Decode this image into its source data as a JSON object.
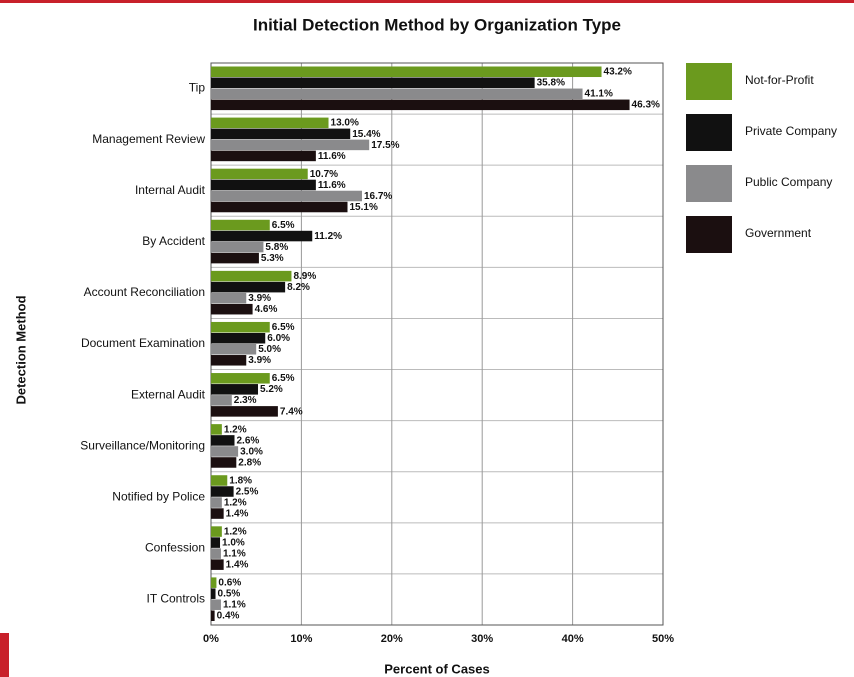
{
  "chart_data": {
    "type": "bar",
    "orientation": "horizontal",
    "title": "Initial Detection Method by Organization Type",
    "xlabel": "Percent of Cases",
    "ylabel": "Detection Method",
    "categories": [
      "Tip",
      "Management Review",
      "Internal Audit",
      "By Accident",
      "Account Reconciliation",
      "Document Examination",
      "External Audit",
      "Surveillance/Monitoring",
      "Notified by Police",
      "Confession",
      "IT Controls"
    ],
    "series": [
      {
        "name": "Not-for-Profit",
        "color": "#6b9a1e",
        "label_color": "#6b9a1e",
        "values": [
          43.2,
          13.0,
          10.7,
          6.5,
          8.9,
          6.5,
          6.5,
          1.2,
          1.8,
          1.2,
          0.6
        ],
        "value_labels": [
          "43.2%",
          "13.0%",
          "10.7%",
          "6.5%",
          "8.9%",
          "6.5%",
          "6.5%",
          "1.2%",
          "1.8%",
          "1.2%",
          "0.6%"
        ]
      },
      {
        "name": "Private Company",
        "color": "#111111",
        "label_color": "#0d0d1a",
        "values": [
          35.8,
          15.4,
          11.6,
          11.2,
          8.2,
          6.0,
          5.2,
          2.6,
          2.5,
          1.0,
          0.5
        ],
        "value_labels": [
          "35.8%",
          "15.4%",
          "11.6%",
          "11.2%",
          "8.2%",
          "6.0%",
          "5.2%",
          "2.6%",
          "2.5%",
          "1.0%",
          "0.5%"
        ]
      },
      {
        "name": "Public Company",
        "color": "#8a8a8c",
        "label_color": "#9a9a9c",
        "values": [
          41.1,
          17.5,
          16.7,
          5.8,
          3.9,
          5.0,
          2.3,
          3.0,
          1.2,
          1.1,
          1.1
        ],
        "value_labels": [
          "41.1%",
          "17.5%",
          "16.7%",
          "5.8%",
          "3.9%",
          "5.0%",
          "2.3%",
          "3.0%",
          "1.2%",
          "1.1%",
          "1.1%"
        ]
      },
      {
        "name": "Government",
        "color": "#1b0f10",
        "label_color": "#4a0f1a",
        "values": [
          46.3,
          11.6,
          15.1,
          5.3,
          4.6,
          3.9,
          7.4,
          2.8,
          1.4,
          1.4,
          0.4
        ],
        "value_labels": [
          "46.3%",
          "11.6%",
          "15.1%",
          "5.3%",
          "4.6%",
          "3.9%",
          "7.4%",
          "2.8%",
          "1.4%",
          "1.4%",
          "0.4%"
        ]
      }
    ],
    "xlim": [
      0,
      50
    ],
    "xticks": [
      {
        "value": 0,
        "label": "0%"
      },
      {
        "value": 10,
        "label": "10%"
      },
      {
        "value": 20,
        "label": "20%"
      },
      {
        "value": 30,
        "label": "30%"
      },
      {
        "value": 40,
        "label": "40%"
      },
      {
        "value": 50,
        "label": "50%"
      }
    ],
    "grid": true,
    "legend": "right"
  }
}
